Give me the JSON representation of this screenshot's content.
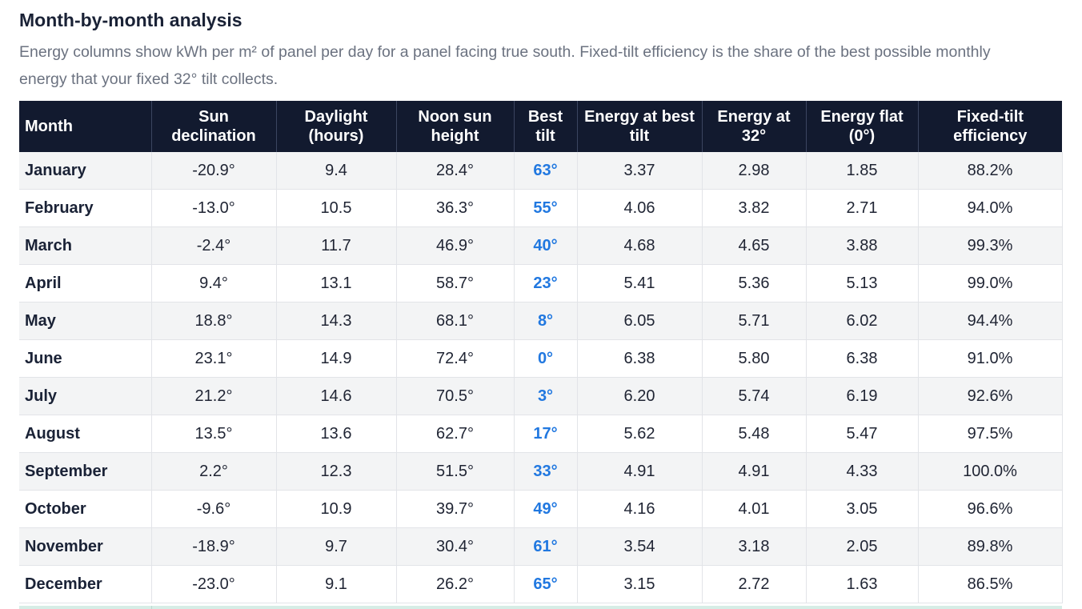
{
  "section": {
    "title": "Month-by-month analysis",
    "subtitle": "Energy columns show kWh per m² of panel per day for a panel facing true south. Fixed-tilt efficiency is the share of the best possible monthly energy that your fixed 32° tilt collects."
  },
  "table": {
    "headers": [
      "Month",
      "Sun declination",
      "Daylight (hours)",
      "Noon sun height",
      "Best tilt",
      "Energy at best tilt",
      "Energy at 32°",
      "Energy flat (0°)",
      "Fixed-tilt efficiency"
    ],
    "rows": [
      [
        "January",
        "-20.9°",
        "9.4",
        "28.4°",
        "63°",
        "3.37",
        "2.98",
        "1.85",
        "88.2%"
      ],
      [
        "February",
        "-13.0°",
        "10.5",
        "36.3°",
        "55°",
        "4.06",
        "3.82",
        "2.71",
        "94.0%"
      ],
      [
        "March",
        "-2.4°",
        "11.7",
        "46.9°",
        "40°",
        "4.68",
        "4.65",
        "3.88",
        "99.3%"
      ],
      [
        "April",
        "9.4°",
        "13.1",
        "58.7°",
        "23°",
        "5.41",
        "5.36",
        "5.13",
        "99.0%"
      ],
      [
        "May",
        "18.8°",
        "14.3",
        "68.1°",
        "8°",
        "6.05",
        "5.71",
        "6.02",
        "94.4%"
      ],
      [
        "June",
        "23.1°",
        "14.9",
        "72.4°",
        "0°",
        "6.38",
        "5.80",
        "6.38",
        "91.0%"
      ],
      [
        "July",
        "21.2°",
        "14.6",
        "70.5°",
        "3°",
        "6.20",
        "5.74",
        "6.19",
        "92.6%"
      ],
      [
        "August",
        "13.5°",
        "13.6",
        "62.7°",
        "17°",
        "5.62",
        "5.48",
        "5.47",
        "97.5%"
      ],
      [
        "September",
        "2.2°",
        "12.3",
        "51.5°",
        "33°",
        "4.91",
        "4.91",
        "4.33",
        "100.0%"
      ],
      [
        "October",
        "-9.6°",
        "10.9",
        "39.7°",
        "49°",
        "4.16",
        "4.01",
        "3.05",
        "96.6%"
      ],
      [
        "November",
        "-18.9°",
        "9.7",
        "30.4°",
        "61°",
        "3.54",
        "3.18",
        "2.05",
        "89.8%"
      ],
      [
        "December",
        "-23.0°",
        "9.1",
        "26.2°",
        "65°",
        "3.15",
        "2.72",
        "1.63",
        "86.5%"
      ]
    ]
  },
  "colors": {
    "header_bg": "#121a2f",
    "best_tilt": "#2178e0",
    "row_alt": "#f3f4f5",
    "summary_row": "#d6ede6"
  }
}
